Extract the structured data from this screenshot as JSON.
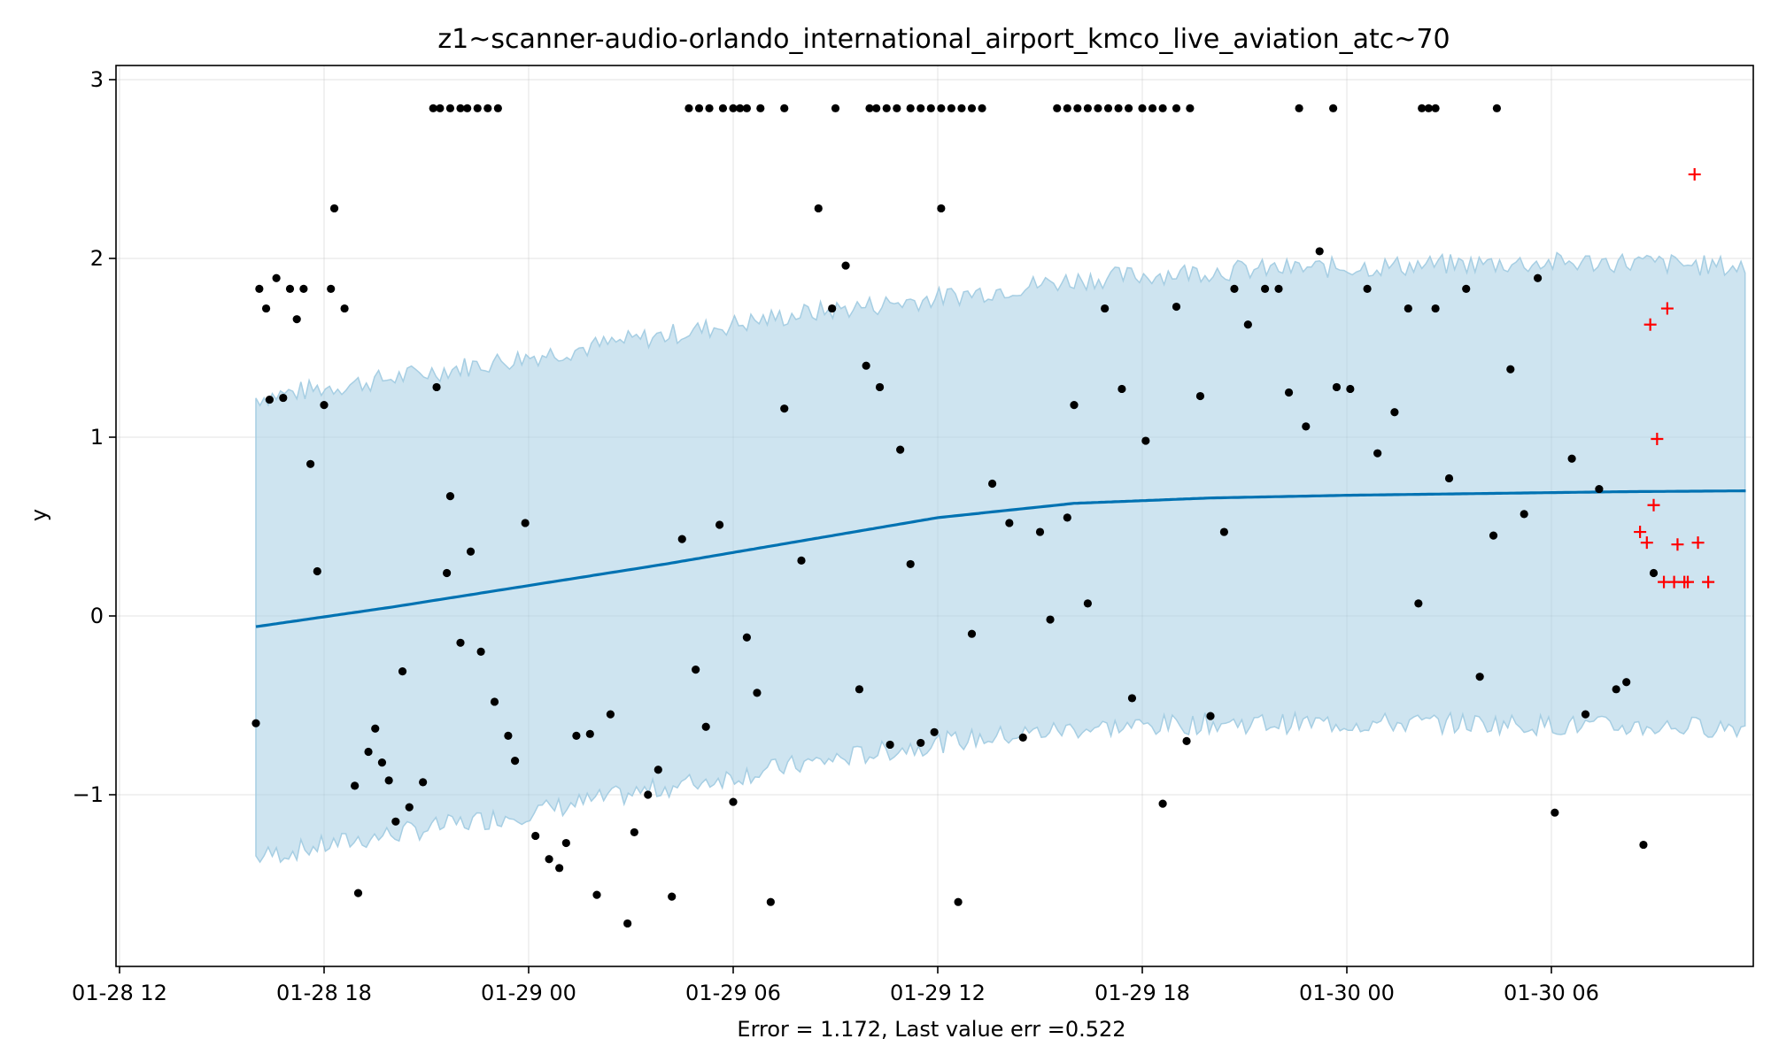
{
  "chart_data": {
    "type": "scatter",
    "title": "z1~scanner-audio-orlando_international_airport_kmco_live_aviation_atc~70",
    "xlabel": "Error = 1.172, Last value err =0.522",
    "ylabel": "y",
    "x_ticks": [
      "01-28 12",
      "01-28 18",
      "01-29 00",
      "01-29 06",
      "01-29 12",
      "01-29 18",
      "01-30 00",
      "01-30 06"
    ],
    "y_ticks": [
      "−1",
      "0",
      "1",
      "2",
      "3"
    ],
    "x_range_hours": [
      -0.5,
      47.5
    ],
    "ylim": [
      -2.0,
      3.1
    ],
    "grid": true,
    "colors": {
      "forecast": "#0072b2",
      "band": "#a6cee3",
      "observed": "#000000",
      "holdout": "#ff0000"
    },
    "forecast_line": {
      "x_hours": [
        4.0,
        8.0,
        12.0,
        16.0,
        20.0,
        24.0,
        28.0,
        32.0,
        36.0,
        40.0,
        44.0,
        47.7
      ],
      "y": [
        -0.06,
        0.05,
        0.17,
        0.29,
        0.42,
        0.55,
        0.63,
        0.66,
        0.675,
        0.685,
        0.695,
        0.7
      ]
    },
    "band": {
      "x_hours": [
        4.0,
        8.0,
        12.0,
        16.0,
        20.0,
        24.0,
        28.0,
        32.0,
        36.0,
        40.0,
        44.0,
        47.7
      ],
      "upper": [
        1.22,
        1.33,
        1.45,
        1.57,
        1.69,
        1.78,
        1.88,
        1.93,
        1.95,
        1.97,
        1.98,
        1.95
      ],
      "lower": [
        -1.35,
        -1.22,
        -1.1,
        -0.96,
        -0.83,
        -0.71,
        -0.63,
        -0.6,
        -0.6,
        -0.6,
        -0.62,
        -0.62
      ]
    },
    "observed": {
      "x_hours": [
        4.0,
        4.1,
        4.3,
        4.4,
        4.6,
        4.8,
        5.0,
        5.2,
        5.4,
        5.6,
        5.8,
        6.0,
        6.2,
        6.3,
        6.6,
        6.9,
        7.0,
        7.3,
        7.5,
        7.7,
        7.9,
        8.1,
        8.3,
        8.5,
        8.9,
        9.3,
        9.6,
        9.7,
        10.0,
        10.3,
        10.6,
        11.0,
        11.4,
        11.6,
        11.9,
        12.2,
        12.6,
        12.9,
        13.1,
        13.4,
        13.8,
        14.0,
        14.4,
        14.9,
        15.1,
        15.5,
        15.8,
        16.2,
        16.5,
        16.9,
        17.2,
        17.6,
        18.0,
        18.4,
        18.7,
        19.1,
        19.5,
        20.0,
        20.5,
        20.9,
        21.3,
        21.7,
        21.9,
        22.3,
        22.6,
        22.9,
        23.2,
        23.5,
        23.9,
        24.1,
        24.6,
        25.0,
        25.6,
        26.1,
        26.5,
        27.0,
        27.3,
        27.8,
        28.0,
        28.4,
        28.9,
        29.4,
        29.7,
        30.1,
        30.6,
        31.0,
        31.3,
        31.7,
        32.0,
        32.4,
        32.7,
        33.1,
        33.6,
        34.0,
        34.3,
        34.8,
        35.2,
        35.7,
        36.1,
        36.6,
        36.9,
        37.4,
        37.8,
        38.1,
        38.6,
        39.0,
        39.5,
        39.9,
        40.3,
        40.8,
        41.2,
        41.6,
        42.1,
        42.6,
        43.0,
        43.4,
        43.9,
        44.2,
        44.7,
        45.0
      ],
      "y": [
        -0.6,
        1.83,
        1.72,
        1.21,
        1.89,
        1.22,
        1.83,
        1.66,
        1.83,
        0.85,
        0.25,
        1.18,
        1.83,
        2.28,
        1.72,
        -0.95,
        -1.55,
        -0.76,
        -0.63,
        -0.82,
        -0.92,
        -1.15,
        -0.31,
        -1.07,
        -0.93,
        1.28,
        0.24,
        0.67,
        -0.15,
        0.36,
        -0.2,
        -0.48,
        -0.67,
        -0.81,
        0.52,
        -1.23,
        -1.36,
        -1.41,
        -1.27,
        -0.67,
        -0.66,
        -1.56,
        -0.55,
        -1.72,
        -1.21,
        -1.0,
        -0.86,
        -1.57,
        0.43,
        -0.3,
        -0.62,
        0.51,
        -1.04,
        -0.12,
        -0.43,
        -1.6,
        1.16,
        0.31,
        2.28,
        1.72,
        1.96,
        -0.41,
        1.4,
        1.28,
        -0.72,
        0.93,
        0.29,
        -0.71,
        -0.65,
        2.28,
        -1.6,
        -0.1,
        0.74,
        0.52,
        -0.68,
        0.47,
        -0.02,
        0.55,
        1.18,
        0.07,
        1.72,
        1.27,
        -0.46,
        0.98,
        -1.05,
        1.73,
        -0.7,
        1.23,
        -0.56,
        0.47,
        1.83,
        1.63,
        1.83,
        1.83,
        1.25,
        1.06,
        2.04,
        1.28,
        1.27,
        1.83,
        0.91,
        1.14,
        1.72,
        0.07,
        1.72,
        0.77,
        1.83,
        -0.34,
        0.45,
        1.38,
        0.57,
        1.89,
        -1.1,
        0.88,
        -0.55,
        0.71,
        -0.41,
        -0.37,
        -1.28,
        0.24
      ]
    },
    "top_row": {
      "x_hours": [
        9.2,
        9.4,
        9.7,
        10.0,
        10.2,
        10.5,
        10.8,
        11.1,
        16.7,
        17.0,
        17.3,
        17.7,
        18.0,
        18.2,
        18.4,
        18.8,
        19.5,
        21.0,
        22.0,
        22.2,
        22.5,
        22.8,
        23.2,
        23.5,
        23.8,
        24.1,
        24.4,
        24.7,
        25.0,
        25.3,
        27.5,
        27.8,
        28.1,
        28.4,
        28.7,
        29.0,
        29.3,
        29.6,
        30.0,
        30.3,
        30.6,
        31.0,
        31.4,
        34.6,
        35.6,
        38.2,
        38.4,
        38.6,
        40.4
      ],
      "y": 2.84
    },
    "holdout": {
      "x_hours": [
        44.6,
        44.8,
        44.9,
        45.0,
        45.1,
        45.3,
        45.4,
        45.6,
        45.7,
        45.9,
        46.0,
        46.2,
        46.3,
        46.6
      ],
      "y": [
        0.47,
        0.41,
        1.63,
        0.62,
        0.99,
        0.19,
        1.72,
        0.19,
        0.4,
        0.19,
        0.19,
        2.47,
        0.41,
        0.19
      ]
    }
  }
}
